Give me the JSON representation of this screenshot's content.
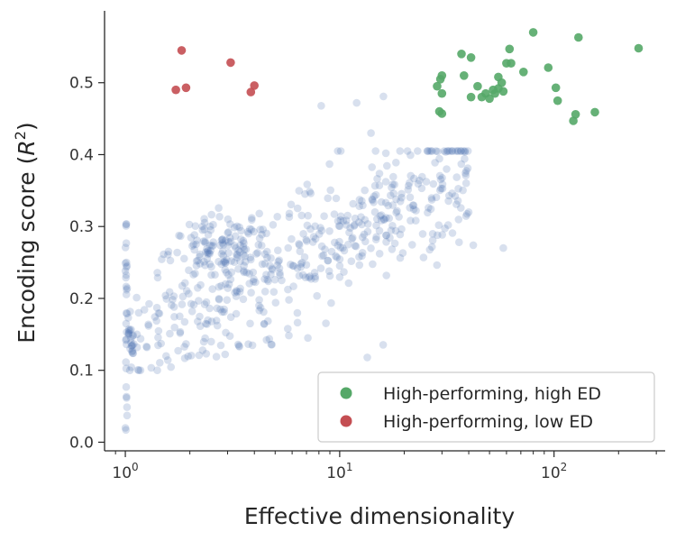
{
  "chart_data": {
    "type": "scatter",
    "xlabel": "Effective dimensionality",
    "ylabel": "Encoding score (R²)",
    "ylabel_parts": {
      "prefix": "Encoding score (",
      "var": "R",
      "sup": "2",
      "suffix": ")"
    },
    "xscale": "log",
    "xlim": [
      0.8,
      330
    ],
    "ylim": [
      -0.012,
      0.6
    ],
    "xticks": [
      {
        "value": 1,
        "base": "10",
        "exp": "0"
      },
      {
        "value": 10,
        "base": "10",
        "exp": "1"
      },
      {
        "value": 100,
        "base": "10",
        "exp": "2"
      }
    ],
    "yticks": [
      {
        "value": 0.0,
        "label": "0.0"
      },
      {
        "value": 0.1,
        "label": "0.1"
      },
      {
        "value": 0.2,
        "label": "0.2"
      },
      {
        "value": 0.3,
        "label": "0.3"
      },
      {
        "value": 0.4,
        "label": "0.4"
      },
      {
        "value": 0.5,
        "label": "0.5"
      }
    ],
    "grid": false,
    "legend_position": "lower-right",
    "colors": {
      "other": "#4c72b0",
      "high_ed": "#55a868",
      "low_ed": "#c44e52"
    },
    "series": [
      {
        "key": "high_ed",
        "name": "High-performing, high ED",
        "x": [
          28.5,
          29.5,
          30,
          30,
          29.2,
          30,
          37,
          38,
          41,
          41,
          44,
          46,
          48,
          50,
          52,
          53,
          55,
          55,
          57,
          58,
          60,
          62,
          63,
          72,
          80,
          94,
          102,
          104,
          123,
          126,
          130,
          155,
          248
        ],
        "y": [
          0.495,
          0.505,
          0.51,
          0.485,
          0.46,
          0.457,
          0.54,
          0.51,
          0.535,
          0.48,
          0.495,
          0.48,
          0.485,
          0.478,
          0.49,
          0.485,
          0.508,
          0.492,
          0.5,
          0.488,
          0.527,
          0.547,
          0.527,
          0.515,
          0.57,
          0.521,
          0.493,
          0.475,
          0.447,
          0.456,
          0.563,
          0.459,
          0.548
        ]
      },
      {
        "key": "low_ed",
        "name": "High-performing, low ED",
        "x": [
          1.72,
          1.83,
          1.92,
          3.1,
          3.85,
          4.0
        ],
        "y": [
          0.49,
          0.545,
          0.493,
          0.528,
          0.487,
          0.496
        ]
      }
    ],
    "background_cloud": {
      "key": "other",
      "n_points": 560,
      "description": "unlabeled models; log10 x ~ 0..1.8, y rising from ~0.05 to ~0.40 with scatter"
    }
  }
}
